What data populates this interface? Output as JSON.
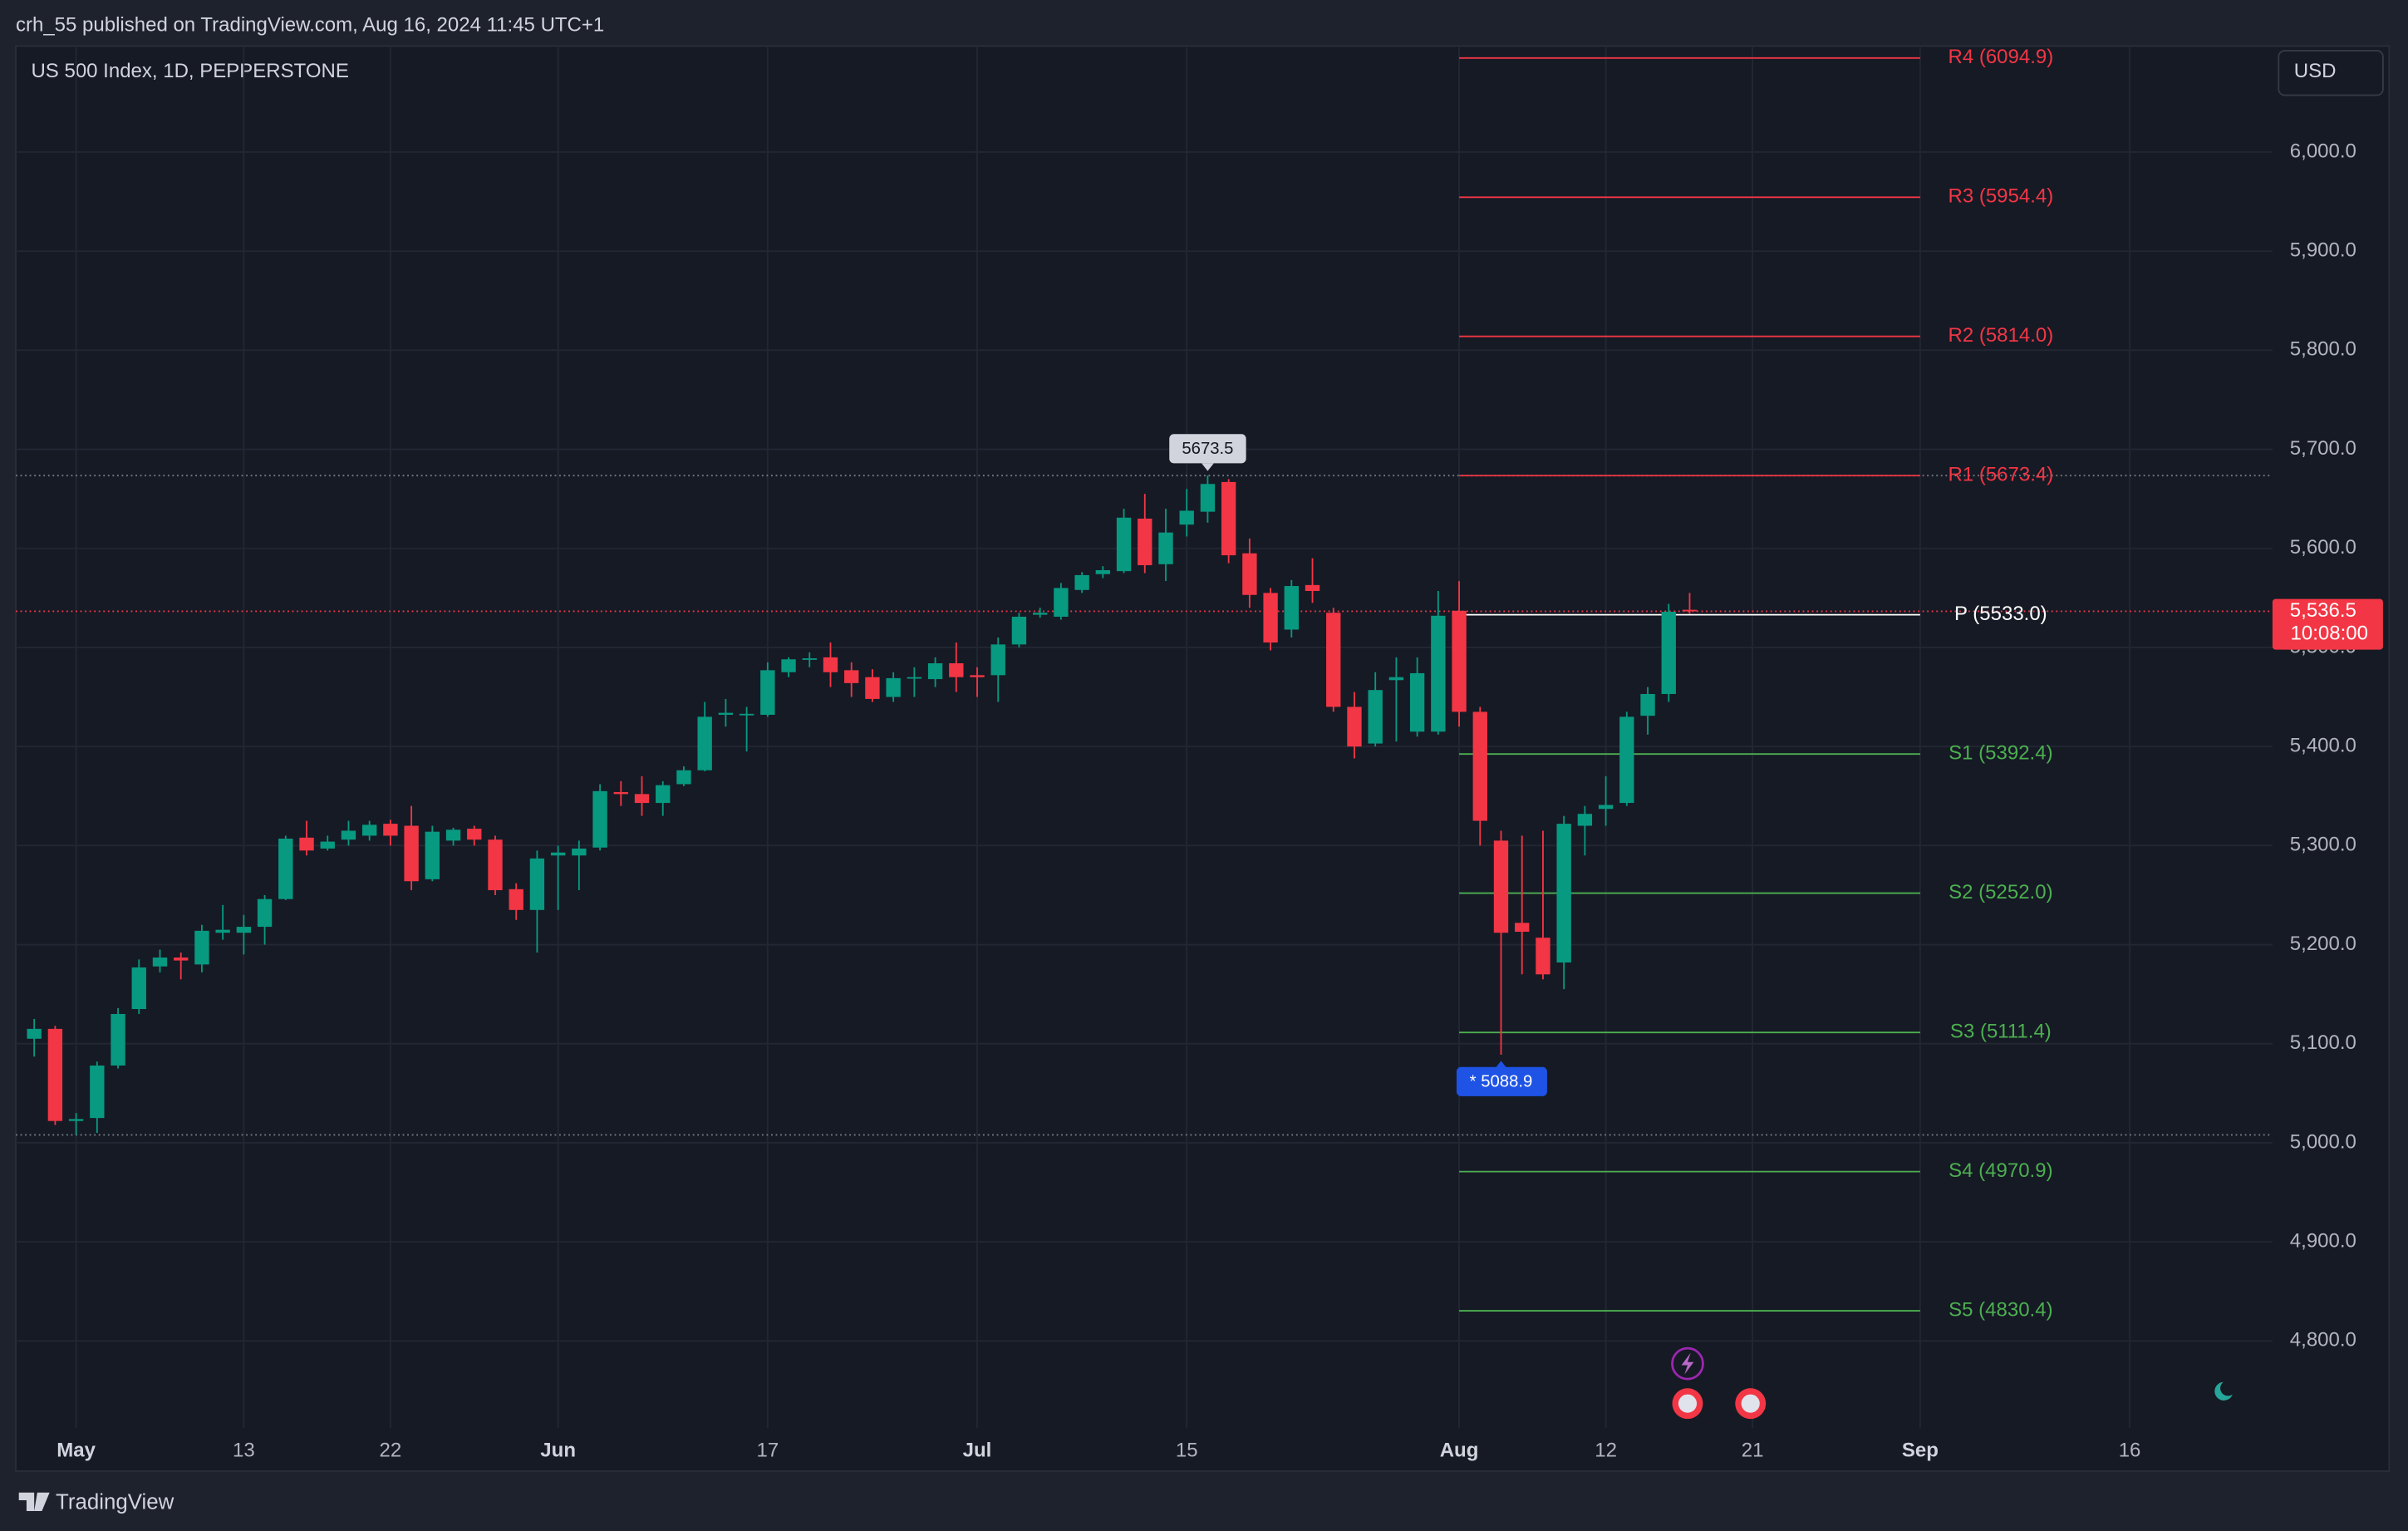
{
  "header": {
    "publisher": "crh_55 published on TradingView.com, Aug 16, 2024 11:45 UTC+1",
    "brand": "TradingView"
  },
  "chart_data": {
    "type": "candlestick",
    "title": "US 500 Index, 1D, PEPPERSTONE",
    "currency": "USD",
    "categories": [
      null,
      null,
      "May",
      null,
      null,
      null,
      null,
      null,
      null,
      null,
      "13",
      null,
      null,
      null,
      null,
      null,
      null,
      "22",
      null,
      null,
      null,
      null,
      null,
      null,
      null,
      "Jun",
      null,
      null,
      null,
      null,
      null,
      null,
      null,
      null,
      null,
      "17",
      null,
      null,
      null,
      null,
      null,
      null,
      null,
      null,
      null,
      "Jul",
      null,
      null,
      null,
      null,
      null,
      null,
      null,
      null,
      null,
      "15",
      null,
      null,
      null,
      null,
      null,
      null,
      null,
      null,
      null,
      null,
      null,
      null,
      "Aug",
      null,
      null,
      null,
      null,
      null,
      null,
      "12",
      null,
      null,
      null,
      null,
      null,
      null,
      "21",
      null,
      null,
      null,
      null,
      null,
      null,
      null,
      "Sep",
      null,
      null,
      null,
      null,
      null,
      null,
      null,
      null,
      null,
      "16"
    ],
    "open": [
      5105,
      5115,
      5022,
      5025,
      5078,
      5135,
      5178,
      5187,
      5180,
      5212,
      5212,
      5218,
      5246,
      5308,
      5297,
      5306,
      5310,
      5322,
      5320,
      5266,
      5305,
      5317,
      5306,
      5256,
      5235,
      5290,
      5290,
      5298,
      5354,
      5352,
      5343,
      5362,
      5376,
      5432,
      5433,
      5432,
      5475,
      5488,
      5490,
      5477,
      5470,
      5450,
      5469,
      5468,
      5484,
      5472,
      5472,
      5503,
      5533,
      5531,
      5558,
      5574,
      5577,
      5630,
      5584,
      5624,
      5637,
      5667,
      5595,
      5555,
      5518,
      5563,
      5535,
      5440,
      5403,
      5467,
      5415,
      5415,
      5537,
      5435,
      5305,
      5222,
      5207,
      5182,
      5320,
      5337,
      5343,
      5431,
      5453,
      5538,
      null,
      null,
      null,
      null,
      null,
      null,
      null,
      null,
      null,
      null,
      null,
      null,
      null,
      null,
      null,
      null,
      null,
      null,
      null,
      null,
      null
    ],
    "high": [
      5125,
      5118,
      5030,
      5082,
      5136,
      5185,
      5195,
      5192,
      5220,
      5240,
      5230,
      5250,
      5310,
      5325,
      5310,
      5325,
      5325,
      5326,
      5340,
      5320,
      5318,
      5320,
      5310,
      5262,
      5295,
      5300,
      5305,
      5362,
      5365,
      5370,
      5365,
      5380,
      5445,
      5448,
      5440,
      5485,
      5490,
      5495,
      5505,
      5485,
      5478,
      5475,
      5480,
      5490,
      5505,
      5480,
      5510,
      5535,
      5540,
      5565,
      5576,
      5582,
      5640,
      5655,
      5640,
      5660,
      5673.5,
      5670,
      5610,
      5560,
      5568,
      5590,
      5540,
      5455,
      5475,
      5490,
      5490,
      5557,
      5567,
      5440,
      5315,
      5310,
      5315,
      5330,
      5340,
      5370,
      5435,
      5460,
      5544,
      5555,
      null,
      null,
      null,
      null,
      null,
      null,
      null,
      null,
      null,
      null,
      null,
      null,
      null,
      null,
      null,
      null,
      null,
      null,
      null,
      null,
      null
    ],
    "low": [
      5087,
      5018,
      5008,
      5010,
      5075,
      5130,
      5172,
      5165,
      5172,
      5205,
      5190,
      5200,
      5245,
      5290,
      5295,
      5300,
      5305,
      5300,
      5255,
      5264,
      5300,
      5300,
      5250,
      5225,
      5192,
      5235,
      5255,
      5295,
      5340,
      5330,
      5330,
      5360,
      5375,
      5420,
      5395,
      5430,
      5470,
      5480,
      5460,
      5450,
      5445,
      5445,
      5450,
      5460,
      5455,
      5450,
      5445,
      5500,
      5530,
      5528,
      5555,
      5570,
      5575,
      5575,
      5567,
      5612,
      5626,
      5585,
      5540,
      5497,
      5510,
      5545,
      5435,
      5388,
      5400,
      5405,
      5410,
      5412,
      5420,
      5300,
      5088.9,
      5170,
      5165,
      5155,
      5290,
      5320,
      5340,
      5412,
      5445,
      5534,
      null,
      null,
      null,
      null,
      null,
      null,
      null,
      null,
      null,
      null,
      null,
      null,
      null,
      null,
      null,
      null,
      null,
      null,
      null,
      null,
      null
    ],
    "close": [
      5115,
      5022,
      5024,
      5078,
      5130,
      5177,
      5187,
      5184,
      5214,
      5215,
      5218,
      5246,
      5307,
      5295,
      5304,
      5315,
      5321,
      5310,
      5264,
      5314,
      5316,
      5306,
      5255,
      5235,
      5287,
      5293,
      5297,
      5355,
      5352,
      5343,
      5361,
      5376,
      5430,
      5434,
      5433,
      5477,
      5488,
      5489,
      5475,
      5464,
      5448,
      5469,
      5470,
      5484,
      5470,
      5470,
      5503,
      5531,
      5535,
      5560,
      5573,
      5578,
      5631,
      5583,
      5616,
      5638,
      5665,
      5593,
      5553,
      5505,
      5562,
      5557,
      5440,
      5400,
      5457,
      5470,
      5474,
      5532,
      5435,
      5325,
      5212,
      5213,
      5170,
      5322,
      5332,
      5341,
      5430,
      5453,
      5536,
      5536.5,
      null,
      null,
      null,
      null,
      null,
      null,
      null,
      null,
      null,
      null,
      null,
      null,
      null,
      null,
      null,
      null,
      null,
      null,
      null,
      null,
      null
    ],
    "up_color": "#089981",
    "down_color": "#f23645",
    "ylim": [
      4712,
      6107
    ],
    "yticks": [
      {
        "value": 4800,
        "label": "4,800.0"
      },
      {
        "value": 4900,
        "label": "4,900.0"
      },
      {
        "value": 5000,
        "label": "5,000.0"
      },
      {
        "value": 5100,
        "label": "5,100.0"
      },
      {
        "value": 5200,
        "label": "5,200.0"
      },
      {
        "value": 5300,
        "label": "5,300.0"
      },
      {
        "value": 5400,
        "label": "5,400.0"
      },
      {
        "value": 5500,
        "label": "5,500.0"
      },
      {
        "value": 5600,
        "label": "5,600.0"
      },
      {
        "value": 5700,
        "label": "5,700.0"
      },
      {
        "value": 5800,
        "label": "5,800.0"
      },
      {
        "value": 5900,
        "label": "5,900.0"
      },
      {
        "value": 6000,
        "label": "6,000.0"
      }
    ],
    "grid": true,
    "last_price": {
      "value": 5536.5,
      "label": "5,536.5"
    },
    "countdown": "10:08:00",
    "low_marker": "* 5088.9",
    "pivots": [
      {
        "label": "R4 (6094.9)",
        "value": 6094.9,
        "color": "#f23645"
      },
      {
        "label": "R3 (5954.4)",
        "value": 5954.4,
        "color": "#f23645"
      },
      {
        "label": "R2 (5814.0)",
        "value": 5814.0,
        "color": "#f23645"
      },
      {
        "label": "R1 (5673.4)",
        "value": 5673.4,
        "color": "#f23645"
      },
      {
        "label": "P (5533.0)",
        "value": 5533.0,
        "color": "#ffffff"
      },
      {
        "label": "S1 (5392.4)",
        "value": 5392.4,
        "color": "#4caf50"
      },
      {
        "label": "S2 (5252.0)",
        "value": 5252.0,
        "color": "#4caf50"
      },
      {
        "label": "S3 (5111.4)",
        "value": 5111.4,
        "color": "#4caf50"
      },
      {
        "label": "S4 (4970.9)",
        "value": 4970.9,
        "color": "#4caf50"
      },
      {
        "label": "S5 (4830.4)",
        "value": 4830.4,
        "color": "#4caf50"
      }
    ]
  }
}
